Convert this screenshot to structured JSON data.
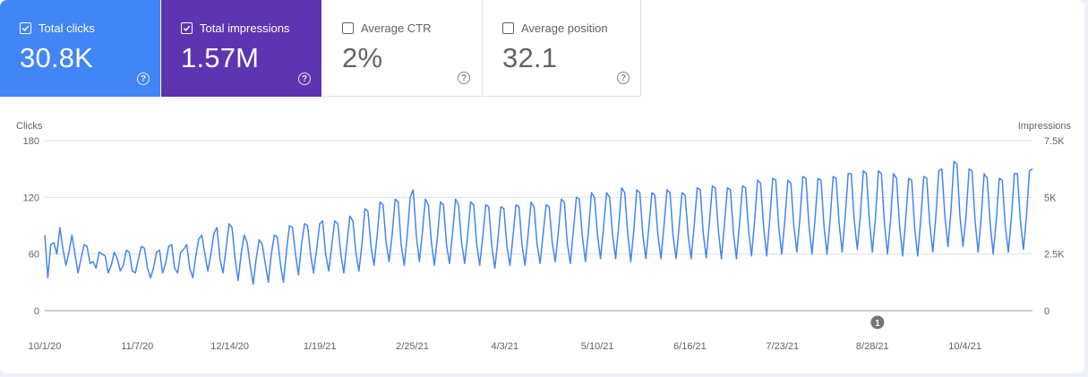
{
  "metrics": [
    {
      "label": "Total clicks",
      "value": "30.8K",
      "checked": true
    },
    {
      "label": "Total impressions",
      "value": "1.57M",
      "checked": true
    },
    {
      "label": "Average CTR",
      "value": "2%",
      "checked": false
    },
    {
      "label": "Average position",
      "value": "32.1",
      "checked": false
    }
  ],
  "help_icon_glyph": "?",
  "colors": {
    "clicks": "#4285f4",
    "impressions": "#5e35b1",
    "grid": "#e0e0e0",
    "axis_text": "#5f6368"
  },
  "chart_data": {
    "type": "line",
    "ylabel_left": "Clicks",
    "ylabel_right": "Impressions",
    "left_ticks": [
      "0",
      "60",
      "120",
      "180"
    ],
    "right_ticks": [
      "0",
      "2.5K",
      "5K",
      "7.5K"
    ],
    "ylim_left": [
      0,
      180
    ],
    "ylim_right": [
      0,
      7500
    ],
    "x_tick_labels": [
      "10/1/20",
      "11/7/20",
      "12/14/20",
      "1/19/21",
      "2/25/21",
      "4/3/21",
      "5/10/21",
      "6/16/21",
      "7/23/21",
      "8/28/21",
      "10/4/21"
    ],
    "x_range": [
      "10/1/20",
      "10/31/21"
    ],
    "annotation": {
      "label": "1",
      "date": "8/30/21"
    },
    "series": [
      {
        "name": "Clicks",
        "values": [
          80,
          35,
          70,
          72,
          60,
          88,
          66,
          48,
          62,
          80,
          60,
          40,
          55,
          70,
          68,
          50,
          52,
          45,
          62,
          60,
          58,
          40,
          48,
          62,
          55,
          42,
          48,
          64,
          62,
          42,
          40,
          55,
          68,
          66,
          45,
          35,
          45,
          62,
          64,
          40,
          50,
          68,
          70,
          45,
          40,
          62,
          65,
          70,
          45,
          35,
          58,
          76,
          80,
          60,
          42,
          60,
          82,
          88,
          55,
          40,
          65,
          92,
          88,
          55,
          32,
          60,
          80,
          72,
          48,
          28,
          55,
          75,
          70,
          50,
          30,
          60,
          80,
          78,
          50,
          30,
          62,
          90,
          88,
          60,
          38,
          70,
          92,
          90,
          60,
          40,
          65,
          92,
          95,
          60,
          42,
          68,
          95,
          92,
          60,
          40,
          70,
          100,
          95,
          62,
          42,
          70,
          108,
          105,
          68,
          48,
          78,
          115,
          112,
          72,
          52,
          80,
          118,
          115,
          70,
          48,
          80,
          120,
          128,
          80,
          52,
          82,
          118,
          112,
          72,
          48,
          78,
          115,
          112,
          70,
          50,
          82,
          118,
          112,
          72,
          50,
          80,
          115,
          112,
          70,
          48,
          78,
          112,
          110,
          68,
          45,
          75,
          110,
          108,
          68,
          48,
          78,
          112,
          110,
          70,
          48,
          80,
          115,
          110,
          70,
          50,
          82,
          112,
          110,
          72,
          52,
          82,
          118,
          115,
          72,
          50,
          85,
          120,
          118,
          78,
          52,
          85,
          125,
          120,
          80,
          55,
          88,
          125,
          120,
          80,
          55,
          90,
          130,
          125,
          82,
          52,
          85,
          128,
          125,
          80,
          55,
          88,
          125,
          122,
          80,
          55,
          90,
          128,
          125,
          80,
          55,
          88,
          125,
          122,
          80,
          55,
          90,
          130,
          128,
          82,
          56,
          92,
          132,
          130,
          85,
          55,
          90,
          130,
          128,
          82,
          55,
          92,
          132,
          130,
          85,
          58,
          95,
          138,
          135,
          88,
          58,
          95,
          140,
          138,
          88,
          60,
          95,
          138,
          135,
          90,
          62,
          98,
          142,
          140,
          90,
          60,
          96,
          140,
          138,
          88,
          60,
          96,
          142,
          140,
          92,
          62,
          100,
          145,
          145,
          95,
          65,
          100,
          148,
          145,
          95,
          62,
          98,
          148,
          145,
          92,
          60,
          96,
          145,
          140,
          90,
          58,
          95,
          140,
          138,
          88,
          58,
          96,
          142,
          140,
          92,
          62,
          100,
          148,
          150,
          100,
          68,
          105,
          158,
          155,
          100,
          68,
          100,
          150,
          148,
          95,
          62,
          98,
          145,
          140,
          92,
          60,
          95,
          140,
          138,
          90,
          62,
          98,
          145,
          145,
          95,
          65,
          100,
          148,
          150
        ],
        "note_values": "daily clicks, 10/1/20 to 10/31/21, read at fine resolution off the left axis"
      }
    ]
  }
}
